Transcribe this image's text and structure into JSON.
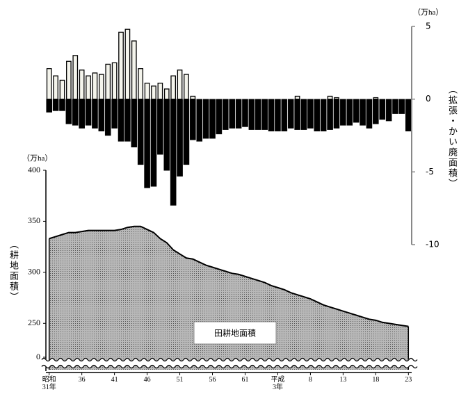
{
  "chart_data": [
    {
      "type": "bar",
      "y_unit_label": "（万ha）",
      "y_axis_label": "（拡張・かい廃面積）",
      "ylim": [
        -10,
        5
      ],
      "yticks": [
        5,
        0,
        -5,
        -10
      ],
      "series": [
        {
          "color": "#f4f4ec",
          "values": [
            2.1,
            1.6,
            1.3,
            2.6,
            3.0,
            2.0,
            1.6,
            1.8,
            1.7,
            2.4,
            2.5,
            4.6,
            4.8,
            4.0,
            2.1,
            1.1,
            0.9,
            1.1,
            0.7,
            1.6,
            2.0,
            1.7,
            0.2,
            0,
            0,
            0,
            0,
            0,
            0,
            0,
            0,
            0,
            0,
            0,
            0,
            0,
            0,
            0,
            0.2,
            0,
            0,
            0,
            0,
            0.2,
            0.1,
            0,
            0,
            0,
            0,
            0,
            0.1,
            0,
            0,
            0,
            0,
            0
          ]
        },
        {
          "color": "#000000",
          "values": [
            -0.9,
            -0.8,
            -0.8,
            -1.7,
            -1.8,
            -2.0,
            -1.8,
            -2.0,
            -2.2,
            -2.5,
            -2.0,
            -2.9,
            -2.9,
            -3.3,
            -4.5,
            -6.1,
            -6.0,
            -3.8,
            -4.9,
            -7.3,
            -5.3,
            -4.5,
            -2.8,
            -2.9,
            -2.7,
            -2.7,
            -2.4,
            -2.1,
            -2.0,
            -2.0,
            -1.9,
            -2.1,
            -2.1,
            -2.1,
            -2.2,
            -2.2,
            -2.2,
            -2.0,
            -2.1,
            -2.1,
            -2.0,
            -2.2,
            -2.2,
            -2.1,
            -2.0,
            -1.8,
            -1.8,
            -1.6,
            -1.8,
            -2.0,
            -1.7,
            -1.4,
            -1.5,
            -1.0,
            -1.0,
            -2.2
          ]
        }
      ]
    },
    {
      "type": "area",
      "y_unit_label": "（万ha）",
      "y_axis_label": "（耕地面積）",
      "annotation": "田耕地面積",
      "color": "#9c9c9c",
      "ylim": [
        210,
        400
      ],
      "yticks": [
        0,
        250,
        300,
        350,
        400
      ],
      "axis_break": true,
      "categories": [
        "昭和31年",
        null,
        null,
        null,
        null,
        "36",
        null,
        null,
        null,
        null,
        "41",
        null,
        null,
        null,
        null,
        "46",
        null,
        null,
        null,
        null,
        "51",
        null,
        null,
        null,
        null,
        "56",
        null,
        null,
        null,
        null,
        "61",
        null,
        null,
        null,
        null,
        "平成3年",
        null,
        null,
        null,
        null,
        "8",
        null,
        null,
        null,
        null,
        "13",
        null,
        null,
        null,
        null,
        "18",
        null,
        null,
        null,
        null,
        "23"
      ],
      "values": [
        333,
        335,
        337,
        339,
        339,
        340,
        341,
        341,
        341,
        341,
        341,
        342,
        344,
        345,
        345,
        342,
        339,
        333,
        329,
        322,
        318,
        314,
        313,
        310,
        307,
        305,
        303,
        301,
        299,
        298,
        296,
        294,
        292,
        290,
        287,
        285,
        283,
        280,
        278,
        276,
        274,
        271,
        268,
        266,
        264,
        262,
        260,
        258,
        256,
        254,
        253,
        251,
        250,
        249,
        248,
        247
      ]
    }
  ]
}
